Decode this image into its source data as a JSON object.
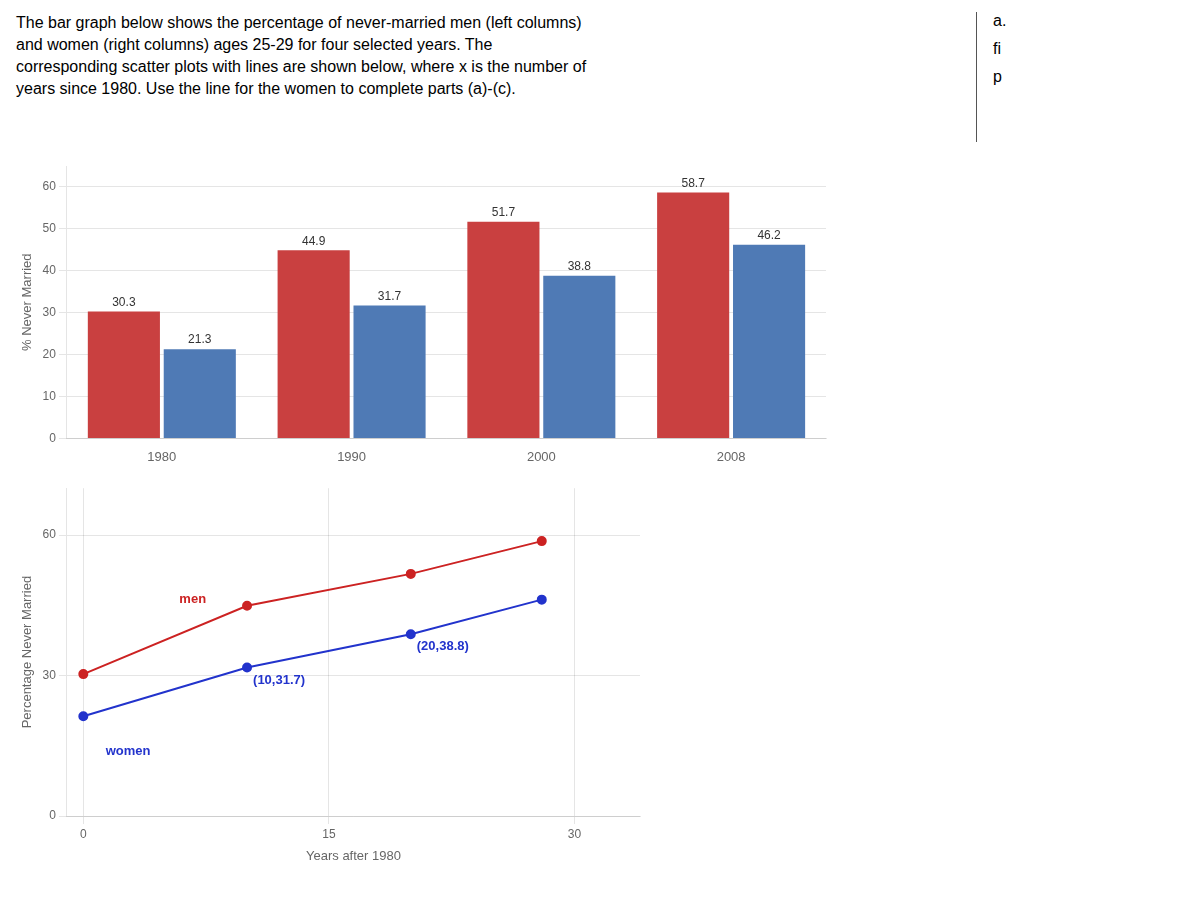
{
  "chart_data": [
    {
      "type": "bar",
      "subtitle": "The bar graph below shows the percentage of never-married men (left columns)\nand women (right columns) ages 25-29 for four selected years. The\ncorresponding scatter plots with lines are shown below, where x is the number of\nyears since 1980. Use the line for the women to complete parts (a)-(c).",
      "annotations": [
        {
          "text": "a."
        },
        {
          "text": "fi"
        },
        {
          "text": "p"
        }
      ],
      "categories": [
        "1980",
        "1990",
        "2000",
        "2008"
      ],
      "series": [
        {
          "color": "#c94040",
          "values": [
            30.3,
            44.9,
            51.7,
            58.7
          ]
        },
        {
          "color": "#4f7ab5",
          "values": [
            21.3,
            31.7,
            38.8,
            46.2
          ]
        }
      ],
      "ylabel": "% Never Married",
      "ylim": [
        0,
        65
      ],
      "yticks": [
        0,
        10,
        20,
        30,
        40,
        50,
        60
      ],
      "grid": true,
      "data_labels": true,
      "legend": false
    },
    {
      "type": "scatter",
      "x": [
        0,
        10,
        20,
        28
      ],
      "series": [
        {
          "color": "#cc2222",
          "values": [
            30.3,
            44.9,
            51.7,
            58.7
          ],
          "marker": "circle",
          "line_style": "solid"
        },
        {
          "color": "#2233cc",
          "values": [
            21.3,
            31.7,
            38.8,
            46.2
          ],
          "marker": "circle",
          "line_style": "solid"
        }
      ],
      "annotations": [
        {
          "text": "men",
          "color": "#cc2222",
          "x": 5.5,
          "y": 49
        },
        {
          "text": "women",
          "color": "#2233cc",
          "x": 1.0,
          "y": 16.5
        },
        {
          "text": "(10,31.7)",
          "color": "#2233cc",
          "x": 10,
          "y": 31.7
        },
        {
          "text": "(20,38.8)",
          "color": "#2233cc",
          "x": 20,
          "y": 38.8
        }
      ],
      "xlabel": "Years after 1980",
      "ylabel": "Percentage Never Married",
      "xlim": [
        -1,
        34
      ],
      "xticks": [
        0,
        15,
        30
      ],
      "ylim": [
        0,
        70
      ],
      "yticks": [
        0,
        30,
        60
      ],
      "grid": true,
      "legend": false
    }
  ]
}
